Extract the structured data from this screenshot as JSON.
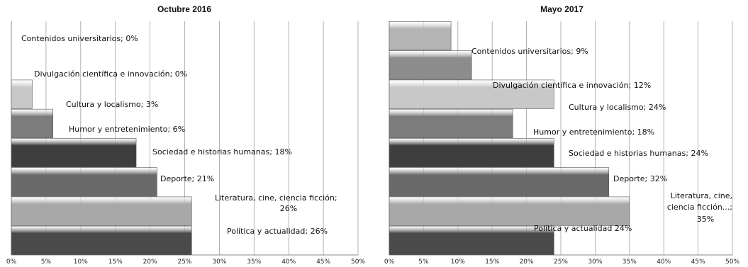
{
  "chart_data": [
    {
      "type": "bar",
      "orientation": "horizontal",
      "title": "Octubre 2016",
      "xlim": [
        0,
        0.5
      ],
      "xticks": [
        "0%",
        "5%",
        "10%",
        "15%",
        "20%",
        "25%",
        "30%",
        "35%",
        "40%",
        "45%",
        "50%"
      ],
      "grid": true,
      "legend": "none",
      "categories": [
        "Contenidos universitarios",
        "Divulgación científica e innovación",
        "Cultura y localismo",
        "Humor y entretenimiento",
        "Sociedad e historias humanas",
        "Deporte",
        "Literatura, cine, ciencia ficción",
        "Política y actualidad"
      ],
      "values": [
        0,
        0,
        0.03,
        0.06,
        0.18,
        0.21,
        0.26,
        0.26
      ],
      "labels": [
        [
          "Contenidos universitarios; 0%"
        ],
        [
          "Divulgación científica e innovación; 0%"
        ],
        [
          "Cultura y localismo; 3%"
        ],
        [
          "Humor y entretenimiento; 6%"
        ],
        [
          "Sociedad e historias humanas; 18%"
        ],
        [
          "Deporte; 21%"
        ],
        [
          "Literatura, cine, ciencia ficción;",
          "26%"
        ],
        [
          "Política y actualidad; 26%"
        ]
      ],
      "bar_colors": [
        "#b4b4b4",
        "#8c8c8c",
        "#c8c8c8",
        "#7c7c7c",
        "#3e3e3e",
        "#6a6a6a",
        "#a8a8a8",
        "#4a4a4a"
      ]
    },
    {
      "type": "bar",
      "orientation": "horizontal",
      "title": "Mayo 2017",
      "xlim": [
        0,
        0.5
      ],
      "xticks": [
        "0%",
        "5%",
        "10%",
        "15%",
        "20%",
        "25%",
        "30%",
        "35%",
        "40%",
        "45%",
        "50%"
      ],
      "grid": true,
      "legend": "none",
      "categories": [
        "Contenidos universitarios",
        "Divulgación científica e innovación",
        "Cultura y localismo",
        "Humor y entretenimiento",
        "Sociedad e historias humanas",
        "Deporte",
        "Literatura, cine, ciencia ficción...",
        "Política y actualidad"
      ],
      "values": [
        0.09,
        0.12,
        0.24,
        0.18,
        0.24,
        0.32,
        0.35,
        0.24
      ],
      "labels": [
        [
          "Contenidos universitarios; 9%"
        ],
        [
          "Divulgación científica e innovación; 12%"
        ],
        [
          "Cultura y localismo; 24%"
        ],
        [
          "Humor y entretenimiento; 18%"
        ],
        [
          "Sociedad e historias humanas; 24%"
        ],
        [
          "Deporte; 32%"
        ],
        [
          "Literatura, cine,",
          "ciencia ficción...;",
          "35%"
        ],
        [
          "Política y actualidad 24%"
        ]
      ],
      "bar_colors": [
        "#b4b4b4",
        "#8c8c8c",
        "#c8c8c8",
        "#7c7c7c",
        "#3e3e3e",
        "#6a6a6a",
        "#a8a8a8",
        "#4a4a4a"
      ]
    }
  ]
}
